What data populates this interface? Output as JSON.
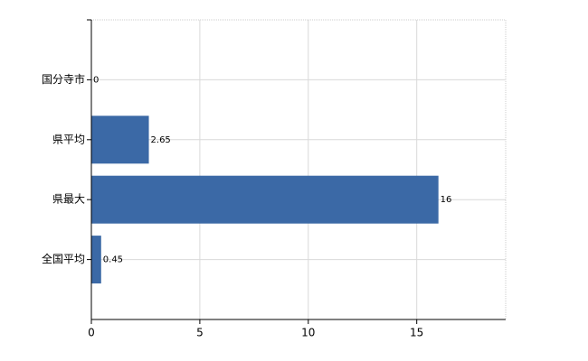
{
  "chart_data": {
    "type": "bar",
    "orientation": "horizontal",
    "categories": [
      "国分寺市",
      "県平均",
      "県最大",
      "全国平均"
    ],
    "values": [
      0,
      2.65,
      16,
      0.45
    ],
    "color": "#3b69a6",
    "xlim": [
      0,
      19.1
    ],
    "xticks": [
      0,
      5,
      10,
      15
    ],
    "grid": true,
    "show_value_labels": true
  }
}
